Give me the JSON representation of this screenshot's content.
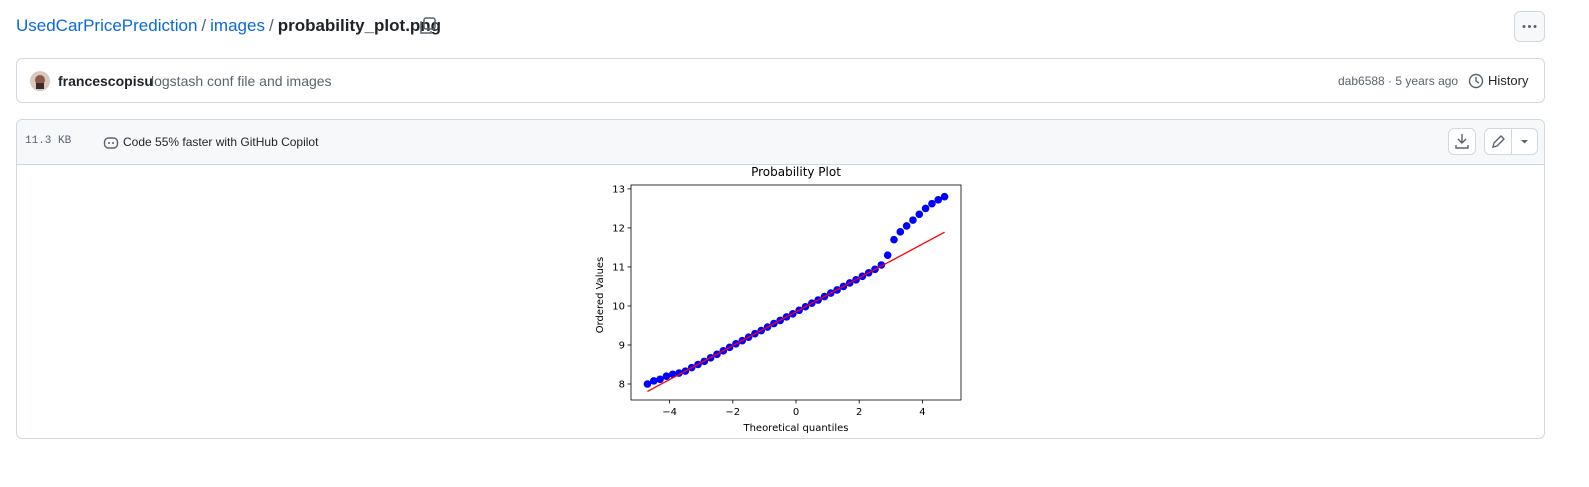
{
  "breadcrumb": {
    "repo": "UsedCarPricePrediction",
    "separator": "/",
    "folder": "images",
    "file": "probability_plot.png"
  },
  "commit": {
    "author": "francescopisu",
    "message": "logstash conf file and images",
    "meta": "dab6588 · 5 years ago",
    "history": "History"
  },
  "file_header": {
    "size": "11.3 KB",
    "copilot": "Code 55% faster with GitHub Copilot"
  },
  "chart_data": {
    "type": "scatter",
    "title": "Probability Plot",
    "x_label": "Theoretical quantiles",
    "y_label": "Ordered Values",
    "color": "#0000ff",
    "x": [
      -4.7,
      -4.5,
      -4.3,
      -4.1,
      -3.9,
      -3.7,
      -3.5,
      -3.3,
      -3.1,
      -2.9,
      -2.7,
      -2.5,
      -2.3,
      -2.1,
      -1.9,
      -1.7,
      -1.5,
      -1.3,
      -1.1,
      -0.9,
      -0.7,
      -0.5,
      -0.3,
      -0.1,
      0.1,
      0.3,
      0.5,
      0.7,
      0.9,
      1.1,
      1.3,
      1.5,
      1.7,
      1.9,
      2.1,
      2.3,
      2.5,
      2.7,
      2.9,
      3.1,
      3.3,
      3.5,
      3.7,
      3.9,
      4.1,
      4.3,
      4.5,
      4.7
    ],
    "values": [
      8.0,
      8.08,
      8.12,
      8.2,
      8.25,
      8.28,
      8.33,
      8.42,
      8.5,
      8.58,
      8.67,
      8.76,
      8.85,
      8.94,
      9.03,
      9.11,
      9.2,
      9.29,
      9.37,
      9.46,
      9.55,
      9.63,
      9.72,
      9.8,
      9.89,
      9.98,
      10.07,
      10.15,
      10.24,
      10.33,
      10.41,
      10.5,
      10.59,
      10.67,
      10.76,
      10.85,
      10.94,
      11.05,
      11.3,
      11.7,
      11.9,
      12.05,
      12.2,
      12.35,
      12.5,
      12.62,
      12.72,
      12.8
    ],
    "fit_line": {
      "x": [
        -4.7,
        4.7
      ],
      "values": [
        7.81,
        11.89
      ],
      "color": "#ff0000"
    },
    "xlim": [
      -5.22,
      5.22
    ],
    "ylim": [
      7.59,
      13.1
    ],
    "xticks": [
      {
        "value": -4,
        "label": "−4"
      },
      {
        "value": -2,
        "label": "−2"
      },
      0,
      2,
      4
    ],
    "yticks": [
      8,
      9,
      10,
      11,
      12,
      13
    ]
  }
}
